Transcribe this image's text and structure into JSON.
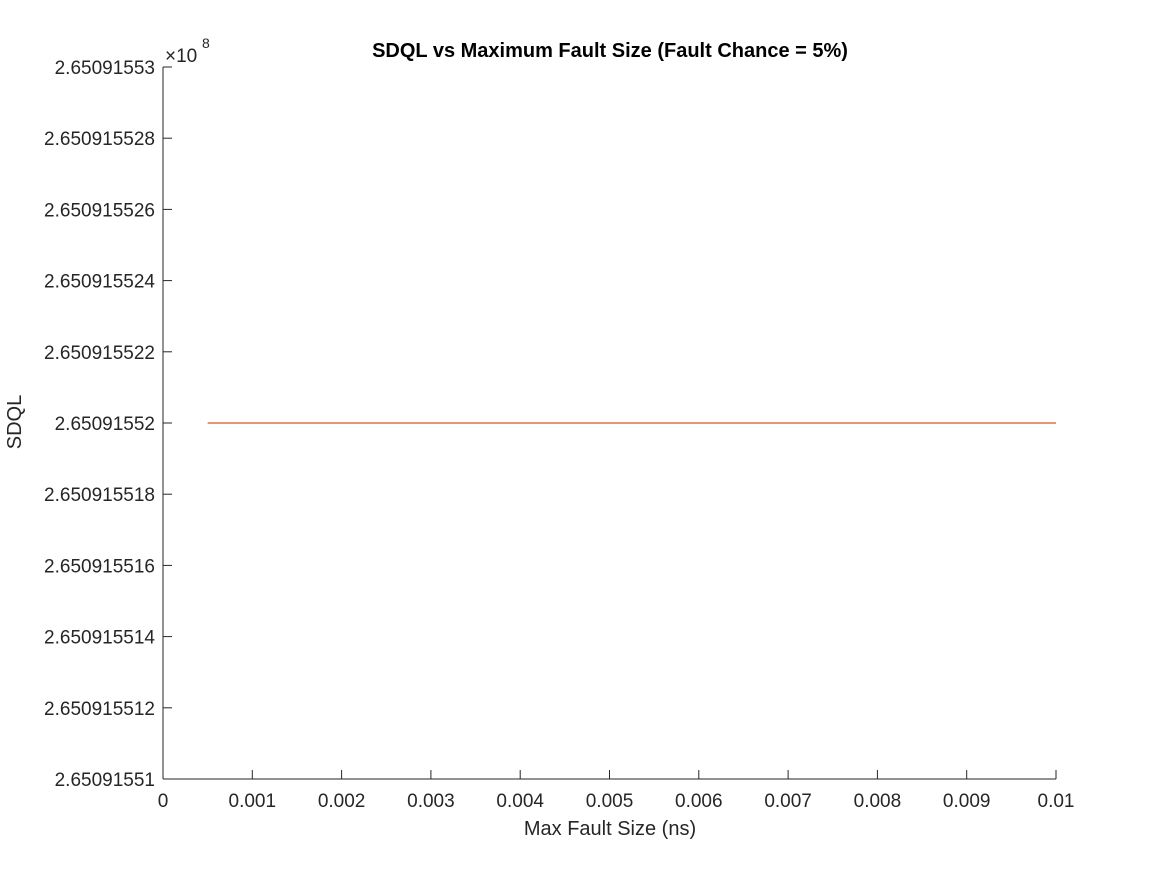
{
  "chart_data": {
    "type": "line",
    "title": "SDQL vs Maximum Fault Size (Fault Chance = 5%)",
    "xlabel": "Max Fault Size (ns)",
    "ylabel": "SDQL",
    "y_exponent_label": "×10",
    "y_exponent_power": "8",
    "xlim": [
      0,
      0.01
    ],
    "ylim": [
      2.65091551,
      2.65091553
    ],
    "x_ticks": [
      0,
      0.001,
      0.002,
      0.003,
      0.004,
      0.005,
      0.006,
      0.007,
      0.008,
      0.009,
      0.01
    ],
    "x_tick_labels": [
      "0",
      "0.001",
      "0.002",
      "0.003",
      "0.004",
      "0.005",
      "0.006",
      "0.007",
      "0.008",
      "0.009",
      "0.01"
    ],
    "y_ticks": [
      2.65091551,
      2.650915512,
      2.650915514,
      2.650915516,
      2.650915518,
      2.65091552,
      2.650915522,
      2.650915524,
      2.650915526,
      2.650915528,
      2.65091553
    ],
    "y_tick_labels": [
      "2.65091551",
      "2.650915512",
      "2.650915514",
      "2.650915516",
      "2.650915518",
      "2.65091552",
      "2.650915522",
      "2.650915524",
      "2.650915526",
      "2.650915528",
      "2.65091553"
    ],
    "grid": false,
    "series": [
      {
        "color": "#D95319",
        "x": [
          0.0005,
          0.001,
          0.002,
          0.003,
          0.004,
          0.005,
          0.006,
          0.007,
          0.008,
          0.009,
          0.01
        ],
        "y": [
          2.65091552,
          2.65091552,
          2.65091552,
          2.65091552,
          2.65091552,
          2.65091552,
          2.65091552,
          2.65091552,
          2.65091552,
          2.65091552,
          2.65091552
        ]
      }
    ]
  }
}
